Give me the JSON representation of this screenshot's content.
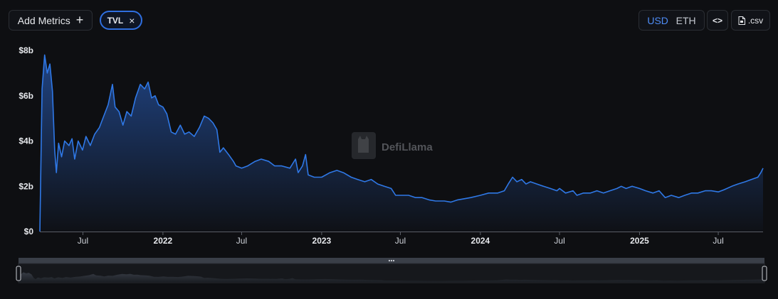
{
  "toolbar": {
    "add_metrics_label": "Add Metrics",
    "add_icon": "+",
    "metric_chip_label": "TVL",
    "remove_icon": "×",
    "currency_options": [
      "USD",
      "ETH"
    ],
    "selected_currency": "USD",
    "embed_icon": "<>",
    "csv_label": ".csv"
  },
  "watermark": {
    "text": "DefiLlama"
  },
  "colors": {
    "line": "#2f78e6",
    "accent": "#4e8cf5",
    "background": "#0e0f12"
  },
  "chart_data": {
    "type": "area",
    "title": "",
    "xlabel": "",
    "ylabel": "",
    "ylim": [
      0,
      8
    ],
    "y_unit": "b",
    "y_ticks": [
      "$0",
      "$2b",
      "$4b",
      "$6b",
      "$8b"
    ],
    "xlim": [
      "2021-03-24",
      "2025-10-12"
    ],
    "x_ticks": [
      {
        "date": "2021-07-01",
        "label": "Jul",
        "bold": false
      },
      {
        "date": "2022-01-01",
        "label": "2022",
        "bold": true
      },
      {
        "date": "2022-07-01",
        "label": "Jul",
        "bold": false
      },
      {
        "date": "2023-01-01",
        "label": "2023",
        "bold": true
      },
      {
        "date": "2023-07-01",
        "label": "Jul",
        "bold": false
      },
      {
        "date": "2024-01-01",
        "label": "2024",
        "bold": true
      },
      {
        "date": "2024-07-01",
        "label": "Jul",
        "bold": false
      },
      {
        "date": "2025-01-01",
        "label": "2025",
        "bold": true
      },
      {
        "date": "2025-07-01",
        "label": "Jul",
        "bold": false
      }
    ],
    "grid": false,
    "legend": "none",
    "series": [
      {
        "points": [
          [
            "2021-03-24",
            0.0
          ],
          [
            "2021-03-29",
            6.3
          ],
          [
            "2021-04-04",
            7.8
          ],
          [
            "2021-04-10",
            7.0
          ],
          [
            "2021-04-16",
            7.4
          ],
          [
            "2021-04-22",
            6.2
          ],
          [
            "2021-04-27",
            3.6
          ],
          [
            "2021-05-01",
            2.6
          ],
          [
            "2021-05-06",
            3.9
          ],
          [
            "2021-05-13",
            3.3
          ],
          [
            "2021-05-20",
            4.0
          ],
          [
            "2021-05-30",
            3.8
          ],
          [
            "2021-06-06",
            4.1
          ],
          [
            "2021-06-12",
            3.2
          ],
          [
            "2021-06-20",
            4.0
          ],
          [
            "2021-06-30",
            3.6
          ],
          [
            "2021-07-08",
            4.2
          ],
          [
            "2021-07-18",
            3.8
          ],
          [
            "2021-07-28",
            4.3
          ],
          [
            "2021-08-08",
            4.6
          ],
          [
            "2021-08-18",
            5.1
          ],
          [
            "2021-08-28",
            5.6
          ],
          [
            "2021-09-07",
            6.5
          ],
          [
            "2021-09-13",
            5.5
          ],
          [
            "2021-09-22",
            5.3
          ],
          [
            "2021-10-01",
            4.7
          ],
          [
            "2021-10-10",
            5.3
          ],
          [
            "2021-10-20",
            5.1
          ],
          [
            "2021-10-30",
            5.9
          ],
          [
            "2021-11-10",
            6.5
          ],
          [
            "2021-11-20",
            6.3
          ],
          [
            "2021-11-28",
            6.6
          ],
          [
            "2021-12-06",
            5.9
          ],
          [
            "2021-12-14",
            6.0
          ],
          [
            "2021-12-22",
            5.6
          ],
          [
            "2022-01-01",
            5.5
          ],
          [
            "2022-01-10",
            5.2
          ],
          [
            "2022-01-20",
            4.4
          ],
          [
            "2022-01-30",
            4.3
          ],
          [
            "2022-02-10",
            4.7
          ],
          [
            "2022-02-20",
            4.3
          ],
          [
            "2022-03-02",
            4.4
          ],
          [
            "2022-03-14",
            4.2
          ],
          [
            "2022-03-26",
            4.6
          ],
          [
            "2022-04-06",
            5.1
          ],
          [
            "2022-04-16",
            5.0
          ],
          [
            "2022-04-26",
            4.8
          ],
          [
            "2022-05-05",
            4.5
          ],
          [
            "2022-05-12",
            3.5
          ],
          [
            "2022-05-20",
            3.7
          ],
          [
            "2022-06-01",
            3.4
          ],
          [
            "2022-06-12",
            3.1
          ],
          [
            "2022-06-18",
            2.9
          ],
          [
            "2022-07-01",
            2.8
          ],
          [
            "2022-07-15",
            2.9
          ],
          [
            "2022-08-01",
            3.1
          ],
          [
            "2022-08-15",
            3.2
          ],
          [
            "2022-09-01",
            3.1
          ],
          [
            "2022-09-15",
            2.9
          ],
          [
            "2022-10-01",
            2.9
          ],
          [
            "2022-10-20",
            2.8
          ],
          [
            "2022-11-02",
            3.2
          ],
          [
            "2022-11-08",
            2.6
          ],
          [
            "2022-11-18",
            2.9
          ],
          [
            "2022-11-25",
            3.4
          ],
          [
            "2022-12-01",
            2.5
          ],
          [
            "2022-12-15",
            2.4
          ],
          [
            "2023-01-01",
            2.4
          ],
          [
            "2023-01-20",
            2.6
          ],
          [
            "2023-02-05",
            2.7
          ],
          [
            "2023-02-20",
            2.6
          ],
          [
            "2023-03-10",
            2.4
          ],
          [
            "2023-03-25",
            2.3
          ],
          [
            "2023-04-10",
            2.2
          ],
          [
            "2023-04-25",
            2.3
          ],
          [
            "2023-05-10",
            2.1
          ],
          [
            "2023-05-25",
            2.0
          ],
          [
            "2023-06-10",
            1.9
          ],
          [
            "2023-06-20",
            1.6
          ],
          [
            "2023-07-01",
            1.6
          ],
          [
            "2023-07-20",
            1.6
          ],
          [
            "2023-08-05",
            1.5
          ],
          [
            "2023-08-20",
            1.5
          ],
          [
            "2023-09-05",
            1.4
          ],
          [
            "2023-09-20",
            1.35
          ],
          [
            "2023-10-10",
            1.35
          ],
          [
            "2023-10-25",
            1.3
          ],
          [
            "2023-11-10",
            1.4
          ],
          [
            "2023-11-25",
            1.45
          ],
          [
            "2023-12-10",
            1.5
          ],
          [
            "2024-01-01",
            1.6
          ],
          [
            "2024-01-20",
            1.7
          ],
          [
            "2024-02-10",
            1.7
          ],
          [
            "2024-02-25",
            1.8
          ],
          [
            "2024-03-05",
            2.1
          ],
          [
            "2024-03-15",
            2.4
          ],
          [
            "2024-03-25",
            2.2
          ],
          [
            "2024-04-05",
            2.3
          ],
          [
            "2024-04-15",
            2.1
          ],
          [
            "2024-04-25",
            2.2
          ],
          [
            "2024-05-10",
            2.1
          ],
          [
            "2024-05-25",
            2.0
          ],
          [
            "2024-06-10",
            1.9
          ],
          [
            "2024-06-25",
            1.8
          ],
          [
            "2024-07-01",
            1.9
          ],
          [
            "2024-07-15",
            1.7
          ],
          [
            "2024-08-01",
            1.8
          ],
          [
            "2024-08-10",
            1.6
          ],
          [
            "2024-08-25",
            1.7
          ],
          [
            "2024-09-10",
            1.7
          ],
          [
            "2024-09-25",
            1.8
          ],
          [
            "2024-10-10",
            1.7
          ],
          [
            "2024-10-25",
            1.8
          ],
          [
            "2024-11-10",
            1.9
          ],
          [
            "2024-11-20",
            2.0
          ],
          [
            "2024-12-01",
            1.9
          ],
          [
            "2024-12-15",
            2.0
          ],
          [
            "2025-01-01",
            1.9
          ],
          [
            "2025-01-15",
            1.8
          ],
          [
            "2025-02-01",
            1.7
          ],
          [
            "2025-02-15",
            1.8
          ],
          [
            "2025-03-01",
            1.5
          ],
          [
            "2025-03-15",
            1.6
          ],
          [
            "2025-04-01",
            1.5
          ],
          [
            "2025-04-15",
            1.6
          ],
          [
            "2025-05-01",
            1.7
          ],
          [
            "2025-05-15",
            1.7
          ],
          [
            "2025-06-01",
            1.8
          ],
          [
            "2025-06-15",
            1.8
          ],
          [
            "2025-07-01",
            1.75
          ],
          [
            "2025-07-15",
            1.85
          ],
          [
            "2025-08-01",
            2.0
          ],
          [
            "2025-08-15",
            2.1
          ],
          [
            "2025-09-01",
            2.2
          ],
          [
            "2025-09-15",
            2.3
          ],
          [
            "2025-09-30",
            2.4
          ],
          [
            "2025-10-07",
            2.6
          ],
          [
            "2025-10-12",
            2.8
          ]
        ]
      }
    ]
  }
}
